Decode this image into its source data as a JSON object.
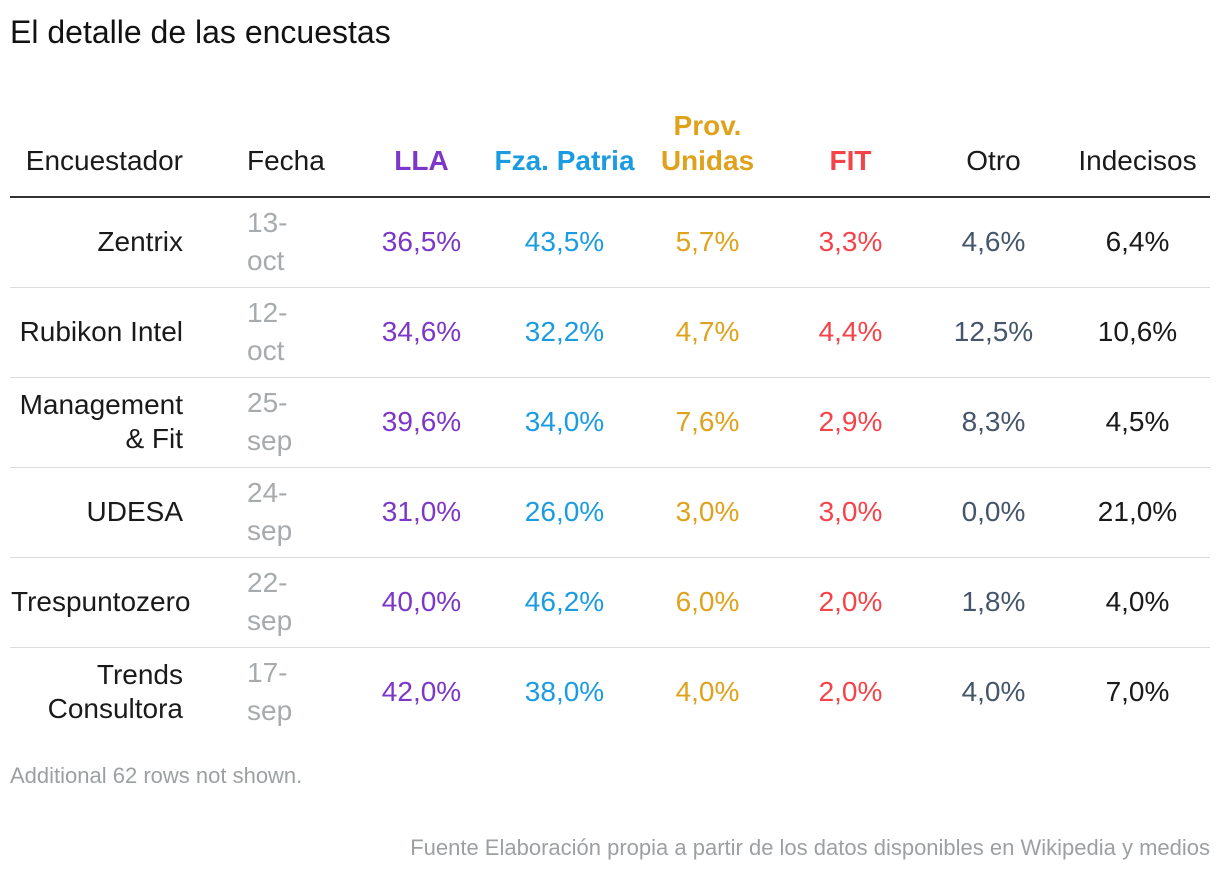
{
  "title": "El detalle de las encuestas",
  "table": {
    "columns": [
      {
        "key": "pollster",
        "label": "Encuestador",
        "header_color": "#1a1a1a",
        "value_color": "#1a1a1a",
        "header_bold": false,
        "align": "right"
      },
      {
        "key": "fecha",
        "label": "Fecha",
        "header_color": "#1a1a1a",
        "value_color": "#a8abad",
        "header_bold": false,
        "align": "left"
      },
      {
        "key": "lla",
        "label": "LLA",
        "header_color": "#7c37c8",
        "value_color": "#7c37c8",
        "header_bold": true,
        "align": "center"
      },
      {
        "key": "fza_patria",
        "label": "Fza. Patria",
        "header_color": "#1b9ce1",
        "value_color": "#1b9ce1",
        "header_bold": true,
        "align": "center"
      },
      {
        "key": "prov_unidas",
        "label": "Prov. Unidas",
        "header_color": "#dfa21c",
        "value_color": "#dfa21c",
        "header_bold": true,
        "align": "center"
      },
      {
        "key": "fit",
        "label": "FIT",
        "header_color": "#f44349",
        "value_color": "#f44349",
        "header_bold": true,
        "align": "center"
      },
      {
        "key": "otro",
        "label": "Otro",
        "header_color": "#1a1a1a",
        "value_color": "#45566b",
        "header_bold": false,
        "align": "center"
      },
      {
        "key": "indecisos",
        "label": "Indecisos",
        "header_color": "#1a1a1a",
        "value_color": "#1a1a1a",
        "header_bold": false,
        "align": "center"
      }
    ],
    "rows": [
      {
        "pollster": "Zentrix",
        "fecha": "13-oct",
        "lla": "36,5%",
        "fza_patria": "43,5%",
        "prov_unidas": "5,7%",
        "fit": "3,3%",
        "otro": "4,6%",
        "indecisos": "6,4%"
      },
      {
        "pollster": "Rubikon Intel",
        "fecha": "12-oct",
        "lla": "34,6%",
        "fza_patria": "32,2%",
        "prov_unidas": "4,7%",
        "fit": "4,4%",
        "otro": "12,5%",
        "indecisos": "10,6%"
      },
      {
        "pollster": "Management & Fit",
        "fecha": "25-sep",
        "lla": "39,6%",
        "fza_patria": "34,0%",
        "prov_unidas": "7,6%",
        "fit": "2,9%",
        "otro": "8,3%",
        "indecisos": "4,5%"
      },
      {
        "pollster": "UDESA",
        "fecha": "24-sep",
        "lla": "31,0%",
        "fza_patria": "26,0%",
        "prov_unidas": "3,0%",
        "fit": "3,0%",
        "otro": "0,0%",
        "indecisos": "21,0%"
      },
      {
        "pollster": "Trespuntozero",
        "fecha": "22-sep",
        "lla": "40,0%",
        "fza_patria": "46,2%",
        "prov_unidas": "6,0%",
        "fit": "2,0%",
        "otro": "1,8%",
        "indecisos": "4,0%"
      },
      {
        "pollster": "Trends Consultora",
        "fecha": "17-sep",
        "lla": "42,0%",
        "fza_patria": "38,0%",
        "prov_unidas": "4,0%",
        "fit": "2,0%",
        "otro": "4,0%",
        "indecisos": "7,0%"
      }
    ]
  },
  "notes": {
    "additional": "Additional 62 rows not shown.",
    "source": "Fuente Elaboración propia a partir de los datos disponibles en Wikipedia y medios"
  },
  "colors": {
    "lla_purple": "#7c37c8",
    "fza_patria_blue": "#1b9ce1",
    "prov_unidas_gold": "#dfa21c",
    "fit_red": "#f44349",
    "otro_slate": "#45566b",
    "date_gray": "#a8abad",
    "note_gray": "#9da0a2",
    "header_rule": "#333333",
    "row_rule": "#dcdcdc",
    "text_black": "#1a1a1a"
  },
  "chart_data": {
    "type": "table",
    "title": "El detalle de las encuestas",
    "columns": [
      "Encuestador",
      "Fecha",
      "LLA",
      "Fza. Patria",
      "Prov. Unidas",
      "FIT",
      "Otro",
      "Indecisos"
    ],
    "rows": [
      [
        "Zentrix",
        "13-oct",
        36.5,
        43.5,
        5.7,
        3.3,
        4.6,
        6.4
      ],
      [
        "Rubikon Intel",
        "12-oct",
        34.6,
        32.2,
        4.7,
        4.4,
        12.5,
        10.6
      ],
      [
        "Management & Fit",
        "25-sep",
        39.6,
        34.0,
        7.6,
        2.9,
        8.3,
        4.5
      ],
      [
        "UDESA",
        "24-sep",
        31.0,
        26.0,
        3.0,
        3.0,
        0.0,
        21.0
      ],
      [
        "Trespuntozero",
        "22-sep",
        40.0,
        46.2,
        6.0,
        2.0,
        1.8,
        4.0
      ],
      [
        "Trends Consultora",
        "17-sep",
        42.0,
        38.0,
        4.0,
        2.0,
        4.0,
        7.0
      ]
    ],
    "value_unit": "percent",
    "number_format": "es locale, comma decimal, one decimal place",
    "layout_hints": {
      "first_column_align": "right",
      "date_column_align": "left",
      "value_columns_align": "center",
      "party_headers_bold_colored": true
    },
    "additional_rows_note": "Additional 62 rows not shown.",
    "source": "Fuente Elaboración propia a partir de los datos disponibles en Wikipedia y medios"
  }
}
